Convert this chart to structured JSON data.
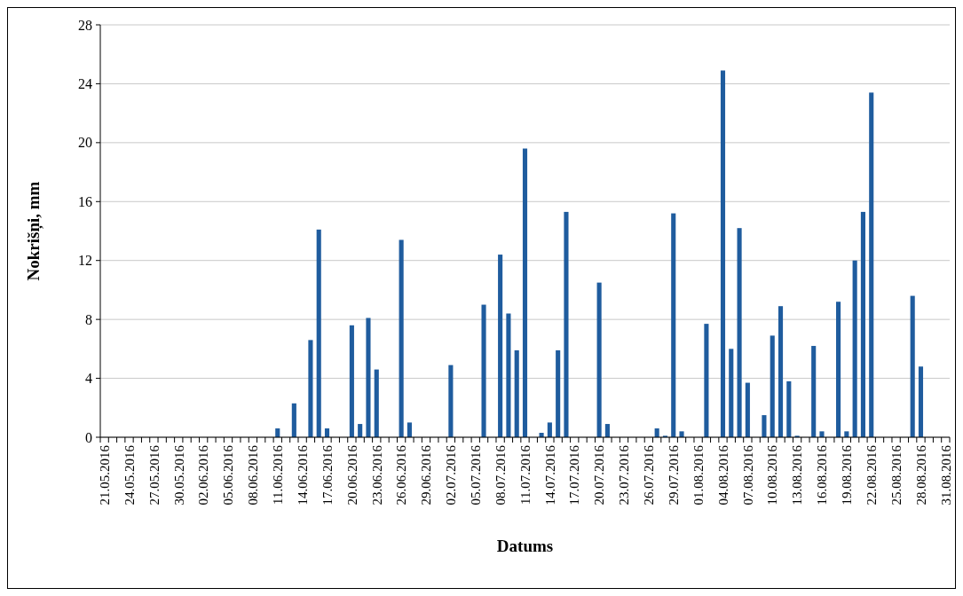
{
  "chart_data": {
    "type": "bar",
    "xlabel": "Datums",
    "ylabel": "Nokrišņi, mm",
    "color": "#1f5c9e",
    "categories": [
      "21.05.2016",
      null,
      null,
      "24.05.2016",
      null,
      null,
      "27.05.2016",
      null,
      null,
      "30.05.2016",
      null,
      null,
      "02.06.2016",
      null,
      null,
      "05.06.2016",
      null,
      null,
      "08.06.2016",
      null,
      null,
      "11.06.2016",
      null,
      null,
      "14.06.2016",
      null,
      null,
      "17.06.2016",
      null,
      null,
      "20.06.2016",
      null,
      null,
      "23.06.2016",
      null,
      null,
      "26.06.2016",
      null,
      null,
      "29.06.2016",
      null,
      null,
      "02.07.2016",
      null,
      null,
      "05.07.2016",
      null,
      null,
      "08.07.2016",
      null,
      null,
      "11.07.2016",
      null,
      null,
      "14.07.2016",
      null,
      null,
      "17.07.2016",
      null,
      null,
      "20.07.2016",
      null,
      null,
      "23.07.2016",
      null,
      null,
      "26.07.2016",
      null,
      null,
      "29.07.2016",
      null,
      null,
      "01.08.2016",
      null,
      null,
      "04.08.2016",
      null,
      null,
      "07.08.2016",
      null,
      null,
      "10.08.2016",
      null,
      null,
      "13.08.2016",
      null,
      null,
      "16.08.2016",
      null,
      null,
      "19.08.2016",
      null,
      null,
      "22.08.2016",
      null,
      null,
      "25.08.2016",
      null,
      null,
      "28.08.2016",
      null,
      null,
      "31.08.2016"
    ],
    "values": [
      0,
      0,
      0,
      0,
      0,
      0,
      0,
      0,
      0,
      0,
      0,
      0,
      0,
      0,
      0,
      0,
      0,
      0,
      0,
      0,
      0,
      0.6,
      0,
      2.3,
      0,
      6.6,
      14.1,
      0.6,
      0,
      0,
      7.6,
      0.9,
      8.1,
      4.6,
      0,
      0,
      13.4,
      1.0,
      0,
      0,
      0,
      0,
      4.9,
      0,
      0,
      0,
      9.0,
      0,
      12.4,
      8.4,
      5.9,
      19.6,
      0,
      0.3,
      1.0,
      5.9,
      15.3,
      0,
      0,
      0,
      10.5,
      0.9,
      0,
      0,
      0,
      0,
      0,
      0.6,
      0.1,
      15.2,
      0.4,
      0,
      0,
      7.7,
      0,
      24.9,
      6.0,
      14.2,
      3.7,
      0,
      1.5,
      6.9,
      8.9,
      3.8,
      0.1,
      0,
      6.2,
      0.4,
      0,
      9.2,
      0.4,
      12.0,
      15.3,
      23.4,
      0,
      0,
      0,
      0,
      9.6,
      4.8,
      0,
      0,
      0
    ],
    "ylim": [
      0,
      28
    ],
    "yticks": [
      0,
      4,
      8,
      12,
      16,
      20,
      24,
      28
    ],
    "grid": "y"
  }
}
